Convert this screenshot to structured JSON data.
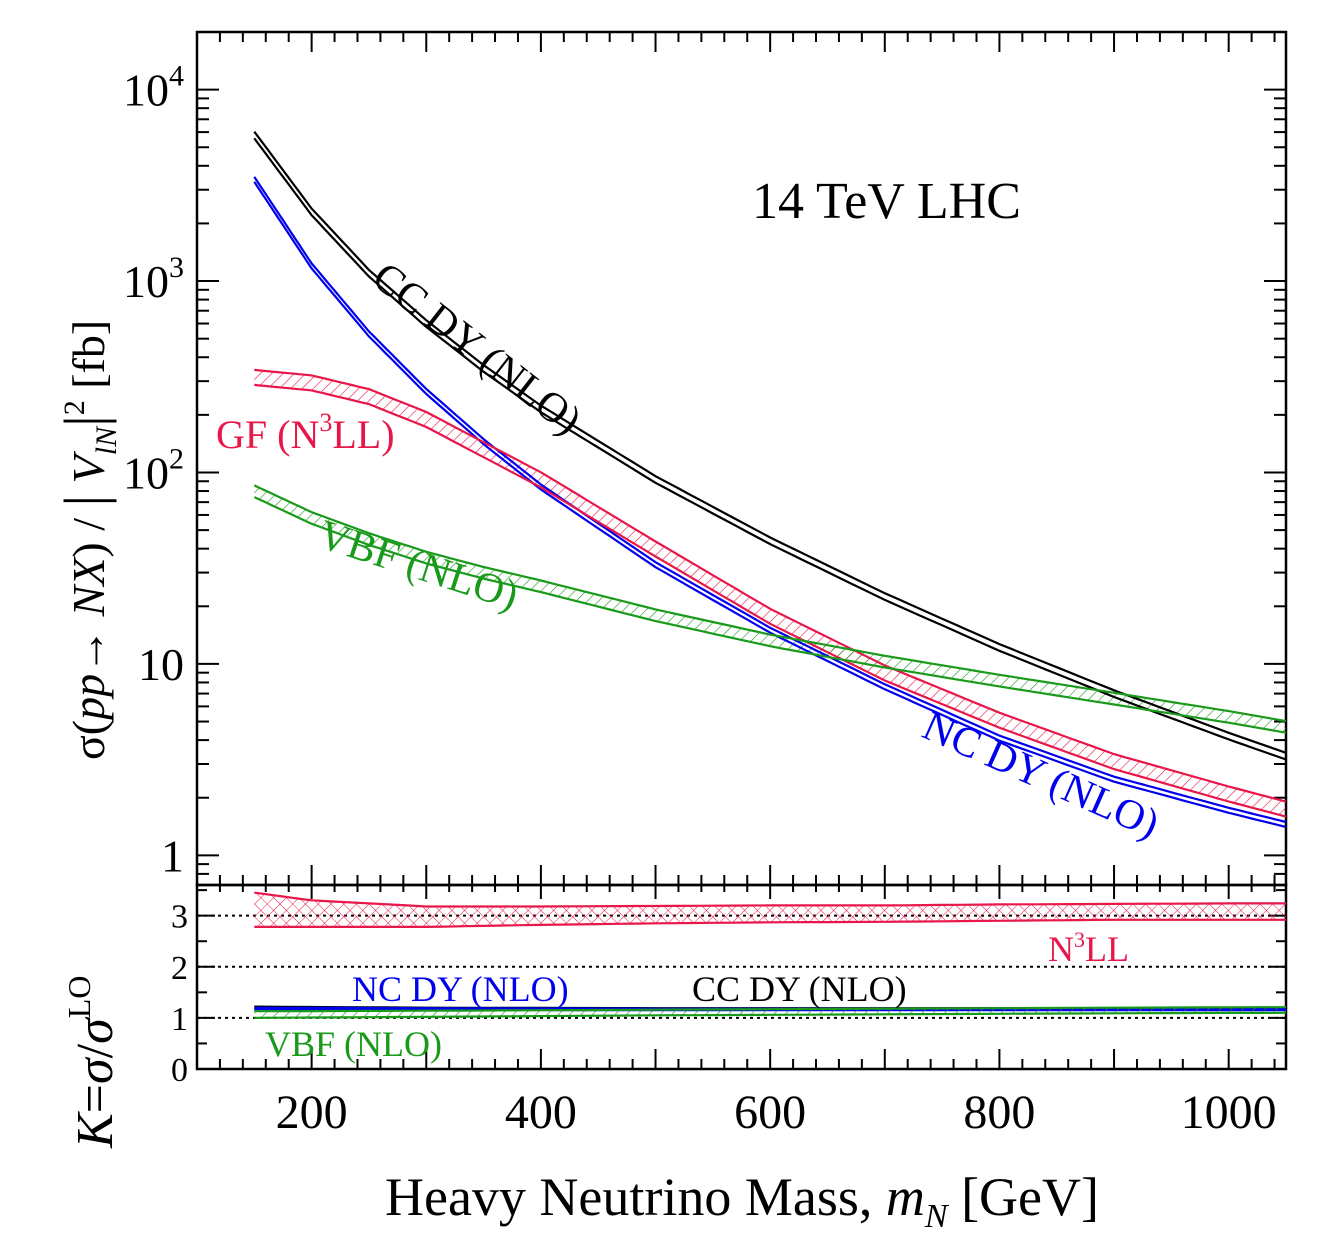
{
  "chart_data": [
    {
      "type": "line",
      "title": "14 TeV LHC",
      "xlabel": "Heavy Neutrino Mass, m_N [GeV]",
      "ylabel": "σ(pp → NX) / | V_lN|^2 [fb]",
      "ylabel_parts": {
        "a": "σ(",
        "b": "pp",
        "c": "→ ",
        "d": "NX",
        "e": ") / ",
        "f": "|",
        "g": " V",
        "h": "lN",
        "i": "|",
        "j": "2",
        "k": " [fb]"
      },
      "xlim": [
        100,
        1050
      ],
      "ylim": [
        0.7,
        20000
      ],
      "yscale": "log",
      "x_ticks": [
        200,
        400,
        600,
        800,
        1000
      ],
      "y_tick_labels": [
        {
          "value": 10000,
          "base": "10",
          "exp": "4"
        },
        {
          "value": 1000,
          "base": "10",
          "exp": "3"
        },
        {
          "value": 100,
          "base": "10",
          "exp": "2"
        },
        {
          "value": 10,
          "base": "10",
          "exp": ""
        },
        {
          "value": 1,
          "base": "1",
          "exp": ""
        }
      ],
      "grid": false,
      "series": [
        {
          "name": "CC DY (NLO)",
          "color": "#000000",
          "x": [
            150,
            200,
            250,
            300,
            350,
            400,
            500,
            600,
            700,
            800,
            900,
            1000,
            1050
          ],
          "y": [
            5800,
            2300,
            1100,
            600,
            350,
            215,
            92,
            44,
            22.5,
            12.2,
            7.0,
            4.2,
            3.3
          ],
          "band": 0.08
        },
        {
          "name": "NC DY (NLO)",
          "color": "#0000ee",
          "x": [
            150,
            200,
            250,
            300,
            350,
            400,
            500,
            600,
            700,
            800,
            900,
            1000,
            1050
          ],
          "y": [
            3400,
            1200,
            530,
            265,
            145,
            84,
            33,
            15,
            7.6,
            4.1,
            2.5,
            1.72,
            1.45
          ],
          "band": 0.06
        },
        {
          "name": "GF (N³LL)",
          "color": "#e8174a",
          "x": [
            150,
            200,
            250,
            300,
            350,
            400,
            500,
            600,
            700,
            800,
            900,
            1000,
            1050
          ],
          "y": [
            315,
            295,
            250,
            190,
            132,
            92,
            40,
            17.8,
            9.0,
            5.1,
            3.1,
            2.1,
            1.75
          ],
          "band": 0.18
        },
        {
          "name": "VBF (NLO)",
          "color": "#1a9a1a",
          "x": [
            150,
            200,
            250,
            300,
            350,
            400,
            500,
            600,
            700,
            800,
            900,
            1000,
            1050
          ],
          "y": [
            80,
            58,
            45,
            36,
            30,
            25.5,
            18,
            13.3,
            10.3,
            8.2,
            6.6,
            5.3,
            4.7
          ],
          "band": 0.14
        }
      ],
      "labels": {
        "cc": "CC DY (NLO)",
        "nc": "NC DY (NLO)",
        "gf_main": "GF (N",
        "gf_sup": "3",
        "gf_end": "LL)",
        "vbf": "VBF (NLO)"
      }
    },
    {
      "type": "line",
      "ylabel": "K=σ/σ^LO",
      "ylabel_parts": {
        "a": "K",
        "b": "=",
        "c": "σ",
        "d": "/",
        "e": "σ",
        "f": "LO"
      },
      "xlim": [
        100,
        1050
      ],
      "ylim": [
        0,
        3.6
      ],
      "y_ticks": [
        0,
        1,
        2,
        3
      ],
      "reference_lines": [
        1,
        2,
        3
      ],
      "series": [
        {
          "name": "N³LL",
          "color": "#e8174a",
          "x": [
            150,
            200,
            300,
            400,
            500,
            600,
            700,
            800,
            900,
            1000,
            1050
          ],
          "upper": [
            3.45,
            3.3,
            3.18,
            3.18,
            3.19,
            3.2,
            3.2,
            3.22,
            3.23,
            3.24,
            3.24
          ],
          "lower": [
            2.78,
            2.78,
            2.78,
            2.82,
            2.85,
            2.87,
            2.88,
            2.9,
            2.92,
            2.92,
            2.92
          ]
        },
        {
          "name": "CC DY (NLO)",
          "color": "#000000",
          "x": [
            150,
            300,
            500,
            700,
            900,
            1050
          ],
          "upper": [
            1.22,
            1.2,
            1.19,
            1.19,
            1.19,
            1.19
          ],
          "lower": [
            1.18,
            1.17,
            1.16,
            1.16,
            1.16,
            1.16
          ]
        },
        {
          "name": "NC DY (NLO)",
          "color": "#0000ee",
          "x": [
            150,
            300,
            500,
            700,
            900,
            1050
          ],
          "upper": [
            1.2,
            1.19,
            1.18,
            1.18,
            1.18,
            1.18
          ],
          "lower": [
            1.17,
            1.16,
            1.15,
            1.15,
            1.15,
            1.15
          ]
        },
        {
          "name": "VBF (NLO)",
          "color": "#1a9a1a",
          "x": [
            150,
            300,
            500,
            700,
            900,
            1050
          ],
          "upper": [
            1.13,
            1.14,
            1.16,
            1.18,
            1.2,
            1.21
          ],
          "lower": [
            1.0,
            1.02,
            1.05,
            1.07,
            1.09,
            1.1
          ]
        }
      ],
      "labels": {
        "n3ll_main": "N",
        "n3ll_sup": "3",
        "n3ll_end": "LL",
        "nc": "NC DY (NLO)",
        "cc": "CC DY (NLO)",
        "vbf": "VBF (NLO)"
      }
    }
  ]
}
